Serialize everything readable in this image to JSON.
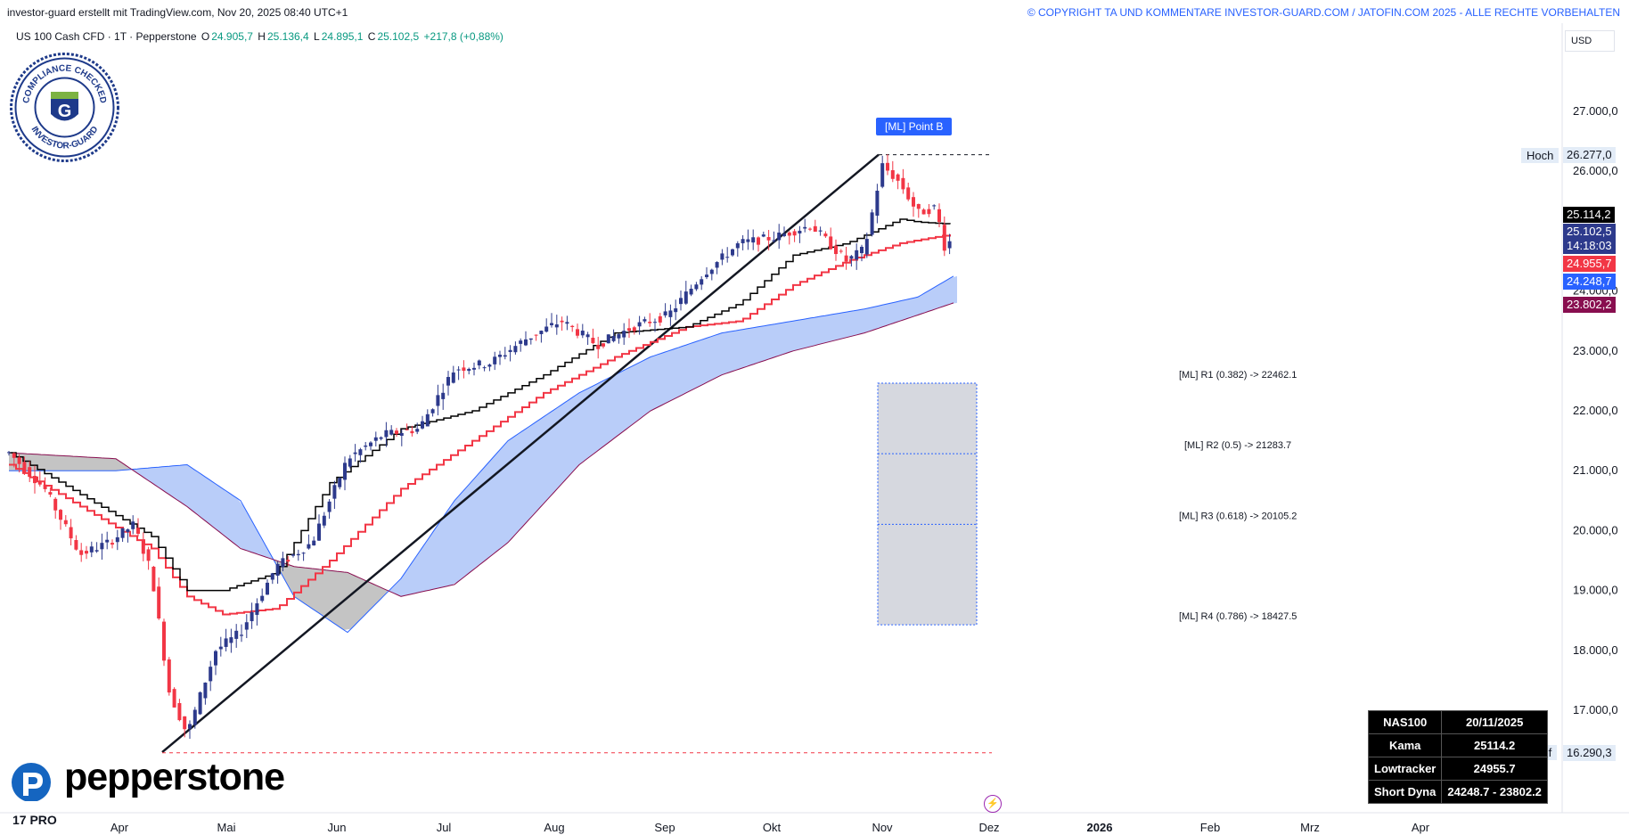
{
  "header": {
    "published_by": "investor-guard erstellt mit TradingView.com, Nov 20, 2025 08:40 UTC+1",
    "copyright": "© COPYRIGHT TA UND KOMMENTARE INVESTOR-GUARD.COM / JATOFIN.COM 2025 - ALLE RECHTE VORBEHALTEN"
  },
  "legend": {
    "symbol": "US 100 Cash CFD · 1T · Pepperstone",
    "o_label": "O",
    "o_value": "24.905,7",
    "h_label": "H",
    "h_value": "25.136,4",
    "l_label": "L",
    "l_value": "24.895,1",
    "c_label": "C",
    "c_value": "25.102,5",
    "change": "+217,8 (+0,88%)"
  },
  "currency": "USD",
  "seal": {
    "top_text": "COMPLIANCE CHECKED",
    "bottom_text": "INVESTOR-GUARD",
    "letter": "G"
  },
  "brand": {
    "name": "pepperstone",
    "tv": "17 PRO"
  },
  "colors": {
    "up": "#2d3a8c",
    "down": "#f23645",
    "kama": "#000000",
    "lowtracker": "#f23645",
    "dyna_fill": "#a7c0f8",
    "dyna_upper": "#2962ff",
    "dyna_lower": "#880e4f",
    "accent": "#2962ff"
  },
  "annotations": {
    "point_b": "[ML] Point B",
    "fib": [
      "[ML] R1 (0.382) -> 22462.1",
      "[ML] R2 (0.5) -> 21283.7",
      "[ML] R3 (0.618) -> 20105.2",
      "[ML] R4 (0.786) -> 18427.5"
    ],
    "high_label": "Hoch",
    "high_value": "26.277,0",
    "low_label": "Tief",
    "low_value": "16.290,3"
  },
  "price_tags": [
    {
      "value": "25.114,2",
      "color": "#000000"
    },
    {
      "value": "25.102,5",
      "color": "#2d3a8c"
    },
    {
      "value": "14:18:03",
      "color": "#2d3a8c"
    },
    {
      "value": "24.955,7",
      "color": "#f23645"
    },
    {
      "value": "24.248,7",
      "color": "#2962ff"
    },
    {
      "value": "23.802,2",
      "color": "#880e4f"
    }
  ],
  "info_table": {
    "rows": [
      [
        "NAS100",
        "20/11/2025"
      ],
      [
        "Kama",
        "25114.2"
      ],
      [
        "Lowtracker",
        "24955.7"
      ],
      [
        "Short Dyna",
        "24248.7 - 23802.2"
      ]
    ]
  },
  "chart_data": {
    "type": "candlestick",
    "title": "US 100 Cash CFD · 1T · Pepperstone",
    "ylim": [
      15500,
      28000
    ],
    "y_ticks": [
      "17.000,0",
      "18.000,0",
      "19.000,0",
      "20.000,0",
      "21.000,0",
      "22.000,0",
      "23.000,0",
      "24.000,0",
      "26.000,0",
      "27.000,0"
    ],
    "y_tick_values": [
      17000,
      18000,
      19000,
      20000,
      21000,
      22000,
      23000,
      24000,
      26000,
      27000
    ],
    "x_ticks": [
      "Apr",
      "Mai",
      "Jun",
      "Jul",
      "Aug",
      "Sep",
      "Okt",
      "Nov",
      "Dez",
      "2026",
      "Feb",
      "Mrz",
      "Apr"
    ],
    "x_tick_days": [
      31,
      61,
      92,
      122,
      153,
      184,
      214,
      245,
      275,
      306,
      337,
      365,
      396
    ],
    "start_day": 0,
    "end_day": 323,
    "close_series_anchor_days": [
      0,
      10,
      20,
      28,
      35,
      40,
      45,
      50,
      58,
      65,
      75,
      85,
      95,
      105,
      115,
      125,
      135,
      145,
      155,
      165,
      175,
      185,
      195,
      205,
      215,
      225,
      235,
      240,
      245,
      250,
      255,
      260,
      263,
      265
    ],
    "close_series_anchor_values": [
      21300,
      20700,
      19600,
      19800,
      20100,
      19300,
      17300,
      16600,
      18000,
      18300,
      19400,
      19800,
      21200,
      21600,
      21700,
      22700,
      22800,
      23200,
      23500,
      23100,
      23400,
      23600,
      24300,
      24800,
      24900,
      25100,
      24500,
      24700,
      26100,
      25800,
      25300,
      25400,
      24600,
      25100
    ],
    "kama": {
      "anchor_days": [
        0,
        20,
        40,
        50,
        60,
        75,
        90,
        110,
        130,
        150,
        170,
        190,
        205,
        220,
        235,
        250,
        255,
        265
      ],
      "values": [
        21300,
        20600,
        19900,
        19000,
        19000,
        19300,
        20800,
        21700,
        22000,
        22600,
        23300,
        23400,
        23800,
        24600,
        24800,
        25200,
        25150,
        25114
      ]
    },
    "lowtracker": {
      "anchor_days": [
        0,
        20,
        40,
        50,
        60,
        75,
        90,
        110,
        130,
        150,
        170,
        190,
        205,
        220,
        235,
        250,
        265
      ],
      "values": [
        21100,
        20400,
        19700,
        18900,
        18600,
        18700,
        19500,
        20700,
        21500,
        22300,
        22900,
        23400,
        23500,
        24100,
        24500,
        24800,
        24956
      ]
    },
    "dyna_upper": {
      "anchor_days": [
        0,
        30,
        50,
        65,
        80,
        95,
        110,
        125,
        140,
        160,
        180,
        200,
        220,
        240,
        255,
        265
      ],
      "values": [
        21000,
        21000,
        21100,
        20500,
        18900,
        18300,
        19200,
        20500,
        21500,
        22300,
        22900,
        23300,
        23500,
        23700,
        23900,
        24249
      ]
    },
    "dyna_lower": {
      "anchor_days": [
        0,
        30,
        50,
        65,
        80,
        95,
        110,
        125,
        140,
        160,
        180,
        200,
        220,
        240,
        255,
        265
      ],
      "values": [
        21300,
        21200,
        20400,
        19700,
        19400,
        19300,
        18900,
        19100,
        19800,
        21100,
        22000,
        22600,
        23000,
        23300,
        23600,
        23802
      ]
    },
    "trendline": {
      "from_day": 40,
      "from_value": 16300,
      "to_day": 243,
      "to_value": 26277
    },
    "high": {
      "day": 243,
      "value": 26277
    },
    "low": {
      "day": 40,
      "value": 16290
    },
    "fib_box": {
      "from_day": 243,
      "to_day": 268,
      "top": 22462.1,
      "mid1": 21283.7,
      "mid2": 20105.2,
      "bottom": 18427.5
    }
  }
}
